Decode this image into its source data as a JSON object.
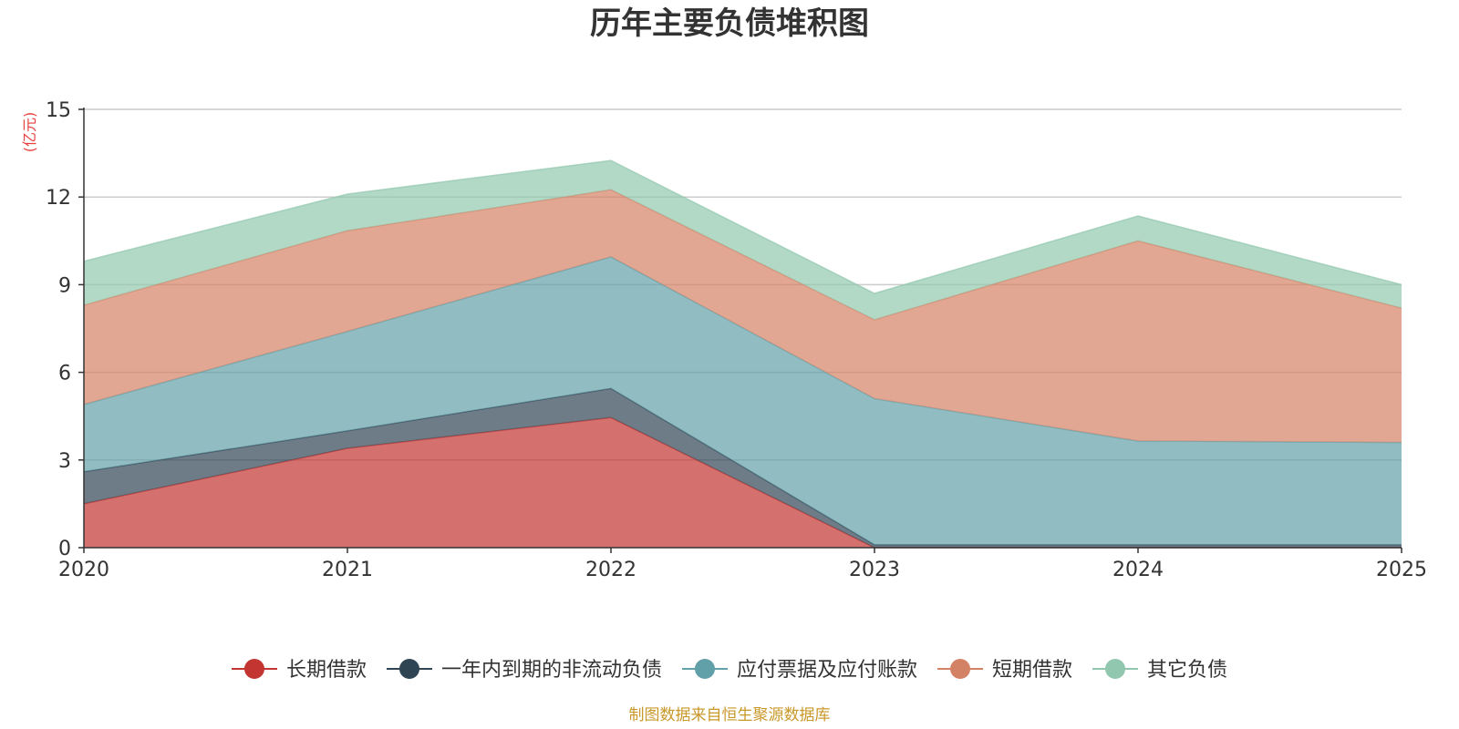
{
  "chart_data": {
    "type": "area",
    "stacked": true,
    "title": "历年主要负债堆积图",
    "unit_label": "(亿元)",
    "source": "制图数据来自恒生聚源数据库",
    "x": [
      "2020",
      "2021",
      "2022",
      "2023",
      "2024",
      "2025"
    ],
    "ylim": [
      0,
      15
    ],
    "yticks": [
      "0",
      "3",
      "6",
      "9",
      "12",
      "15"
    ],
    "grid": true,
    "legend_position": "bottom",
    "series": [
      {
        "name": "长期借款",
        "color": "#c23531",
        "values": [
          1.5,
          3.4,
          4.45,
          0.0,
          0.0,
          0.0
        ]
      },
      {
        "name": "一年内到期的非流动负债",
        "color": "#2f4554",
        "values": [
          1.1,
          0.6,
          1.0,
          0.1,
          0.1,
          0.1
        ]
      },
      {
        "name": "应付票据及应付账款",
        "color": "#61a0a8",
        "values": [
          2.3,
          3.4,
          4.5,
          5.0,
          3.55,
          3.5
        ]
      },
      {
        "name": "短期借款",
        "color": "#d48265",
        "values": [
          3.4,
          3.45,
          2.3,
          2.7,
          6.85,
          4.6
        ]
      },
      {
        "name": "其它负债",
        "color": "#91c7ae",
        "values": [
          1.5,
          1.25,
          1.0,
          0.9,
          0.85,
          0.8
        ]
      }
    ]
  }
}
